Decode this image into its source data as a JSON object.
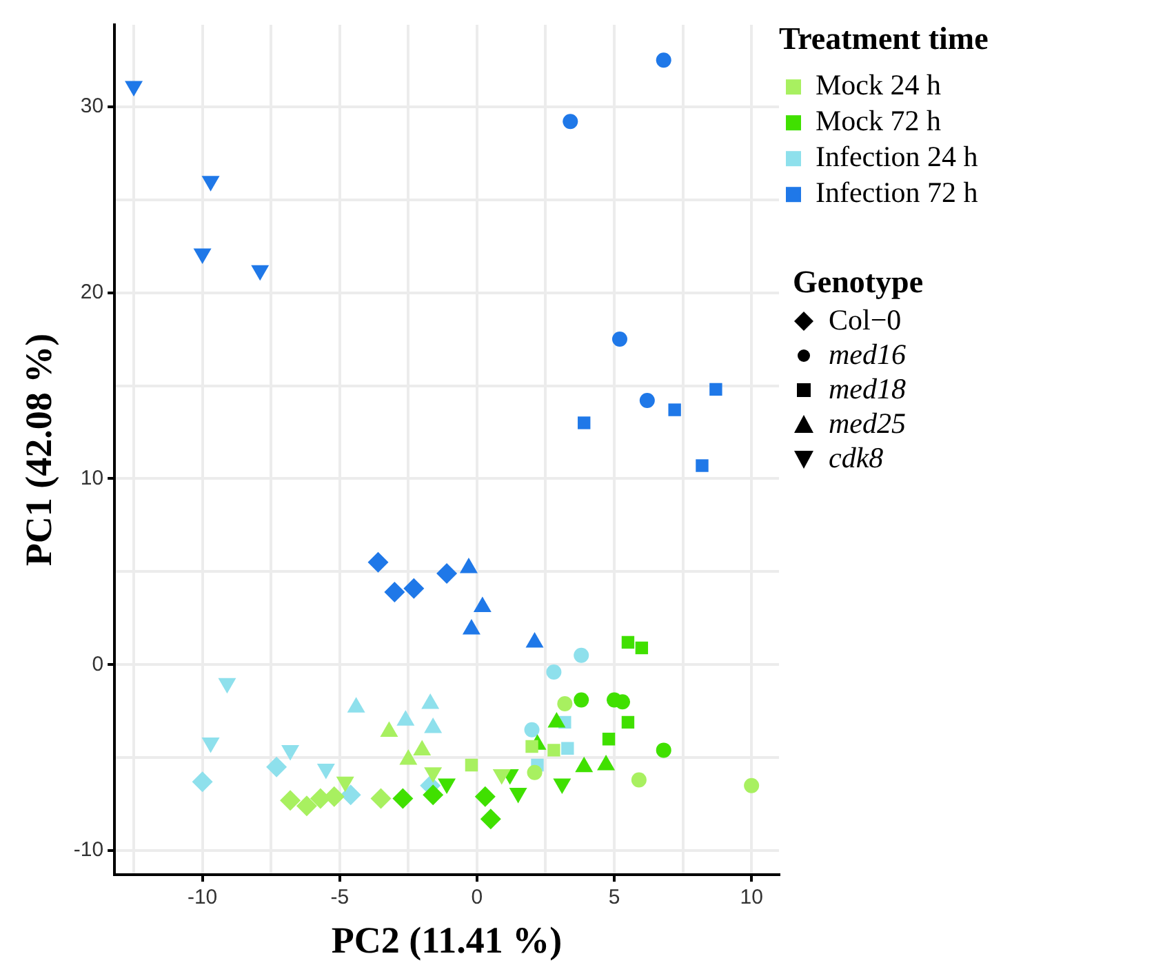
{
  "chart_data": {
    "type": "scatter",
    "xlabel": "PC2 (11.41 %)",
    "ylabel": "PC1 (42.08 %)",
    "xlim": [
      -13.2,
      11
    ],
    "ylim": [
      -11.3,
      34.4
    ],
    "xticks": [
      {
        "value": -12.5,
        "label": null
      },
      -10,
      {
        "value": -7.5,
        "label": null
      },
      -5,
      {
        "value": -2.5,
        "label": null
      },
      0,
      {
        "value": 2.5,
        "label": null
      },
      5,
      {
        "value": 7.5,
        "label": null
      },
      10
    ],
    "yticks": [
      -10,
      {
        "value": -5,
        "label": null
      },
      0,
      {
        "value": 5,
        "label": null
      },
      10,
      {
        "value": 15,
        "label": null
      },
      20,
      {
        "value": 25,
        "label": null
      },
      30
    ],
    "grid": true,
    "legend": "right",
    "legend_title": "Treatment time",
    "annotations": [
      "Genotype",
      "Col−0",
      "med16",
      "med18",
      "med25",
      "cdk8"
    ],
    "series": [
      {
        "name": "Mock 24 h",
        "color": "#a8f060",
        "marker": [
          "diamond",
          "diamond",
          "diamond",
          "diamond",
          "diamond",
          "triangle-down",
          "triangle-down",
          "triangle-down",
          "triangle",
          "triangle",
          "triangle",
          "square",
          "square",
          "square",
          "circle",
          "circle",
          "circle",
          "circle"
        ],
        "x": [
          -6.8,
          -6.2,
          -5.7,
          -5.2,
          -3.5,
          -4.8,
          -1.6,
          0.9,
          -3.2,
          -2.5,
          -2.0,
          -0.2,
          2.0,
          2.8,
          3.2,
          5.9,
          10.0,
          2.1
        ],
        "values": [
          -7.3,
          -7.6,
          -7.2,
          -7.1,
          -7.2,
          -6.3,
          -5.8,
          -5.9,
          -3.6,
          -5.1,
          -4.6,
          -5.4,
          -4.4,
          -4.6,
          -2.1,
          -6.2,
          -6.5,
          -5.8
        ]
      },
      {
        "name": "Mock 72 h",
        "color": "#40e000",
        "marker": [
          "diamond",
          "diamond",
          "diamond",
          "diamond",
          "triangle-down",
          "triangle-down",
          "triangle-down",
          "triangle-down",
          "triangle",
          "triangle",
          "triangle",
          "triangle",
          "square",
          "square",
          "square",
          "square",
          "circle",
          "circle",
          "circle",
          "circle"
        ],
        "x": [
          -2.7,
          -1.6,
          0.3,
          0.5,
          -1.1,
          1.2,
          1.5,
          3.1,
          2.9,
          2.2,
          3.9,
          4.7,
          5.5,
          6.0,
          5.5,
          4.8,
          3.8,
          5.0,
          5.3,
          6.8
        ],
        "values": [
          -7.2,
          -7.0,
          -7.1,
          -8.3,
          -6.4,
          -5.9,
          -6.9,
          -6.4,
          -3.1,
          -4.3,
          -5.5,
          -5.4,
          1.2,
          0.9,
          -3.1,
          -4.0,
          -1.9,
          -1.9,
          -2.0,
          -4.6
        ]
      },
      {
        "name": "Infection 24 h",
        "color": "#8ee0ec",
        "marker": [
          "triangle-down",
          "triangle-down",
          "triangle-down",
          "triangle-down",
          "diamond",
          "diamond",
          "diamond",
          "diamond",
          "triangle",
          "triangle",
          "triangle",
          "triangle",
          "circle",
          "circle",
          "circle",
          "square",
          "square",
          "square"
        ],
        "x": [
          -9.1,
          -9.7,
          -6.8,
          -5.5,
          -10.0,
          -7.3,
          -4.6,
          -1.7,
          -4.4,
          -2.6,
          -1.7,
          -1.6,
          3.8,
          2.8,
          2.0,
          3.2,
          3.3,
          2.2
        ],
        "values": [
          -1.0,
          -4.2,
          -4.6,
          -5.6,
          -6.3,
          -5.5,
          -7.0,
          -6.5,
          -2.3,
          -3.0,
          -2.1,
          -3.4,
          0.5,
          -0.4,
          -3.5,
          -3.1,
          -4.5,
          -5.4
        ]
      },
      {
        "name": "Infection 72 h",
        "color": "#1f78e8",
        "marker": [
          "triangle-down",
          "triangle-down",
          "triangle-down",
          "triangle-down",
          "circle",
          "circle",
          "circle",
          "circle",
          "square",
          "square",
          "square",
          "square",
          "diamond",
          "diamond",
          "diamond",
          "diamond",
          "triangle",
          "triangle",
          "triangle",
          "triangle"
        ],
        "x": [
          -12.5,
          -9.7,
          -10.0,
          -7.9,
          3.4,
          6.8,
          5.2,
          6.2,
          3.9,
          7.2,
          8.7,
          8.2,
          -3.6,
          -3.0,
          -2.3,
          -1.1,
          -0.3,
          0.2,
          -0.2,
          2.1
        ],
        "values": [
          31.1,
          26.0,
          22.1,
          21.2,
          29.2,
          32.5,
          17.5,
          14.2,
          13.0,
          13.7,
          14.8,
          10.7,
          5.5,
          3.9,
          4.1,
          4.9,
          5.2,
          3.1,
          1.9,
          1.2
        ]
      }
    ]
  }
}
